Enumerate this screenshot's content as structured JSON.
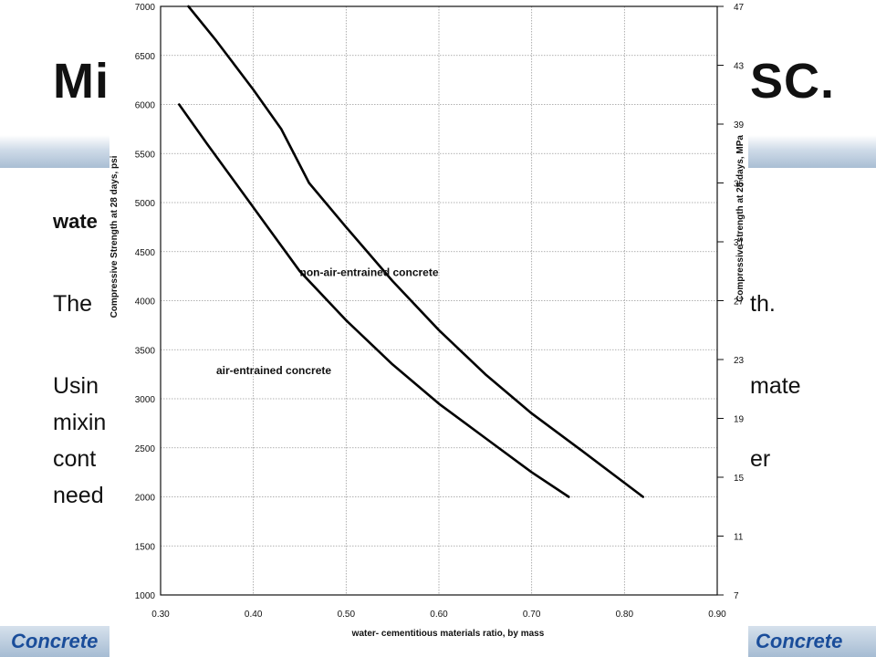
{
  "slide": {
    "title_left": "Mi",
    "title_right": "SC.",
    "line1": "wate",
    "line2_left": "The",
    "line2_right": "th.",
    "line3_left": "Usin",
    "line3_right": "mate",
    "line4_left": "mixin",
    "line5_left": "cont",
    "line5_right": "er",
    "line6_left": "need",
    "footer_left": "Concrete",
    "footer_right": "Concrete"
  },
  "chart_data": {
    "type": "line",
    "title": "",
    "xlabel": "water- cementitious materials ratio, by mass",
    "ylabel": "Compressive Strength at 28 days, psi",
    "y2label": "Compressive strength at 28 days, MPa",
    "xlim": [
      0.3,
      0.9
    ],
    "ylim": [
      1000,
      7000
    ],
    "y2lim": [
      7,
      47
    ],
    "x_ticks": [
      "0.30",
      "0.40",
      "0.50",
      "0.60",
      "0.70",
      "0.80",
      "0.90"
    ],
    "y_ticks": [
      "1000",
      "1500",
      "2000",
      "2500",
      "3000",
      "3500",
      "4000",
      "4500",
      "5000",
      "5500",
      "6000",
      "6500",
      "7000"
    ],
    "y2_ticks": [
      "7",
      "11",
      "15",
      "19",
      "23",
      "27",
      "31",
      "35",
      "39",
      "43",
      "47"
    ],
    "grid": true,
    "legend": "none",
    "series": [
      {
        "name": "non-air-entrained concrete",
        "x": [
          0.33,
          0.36,
          0.4,
          0.43,
          0.46,
          0.5,
          0.55,
          0.6,
          0.65,
          0.7,
          0.75,
          0.82
        ],
        "y": [
          7000,
          6650,
          6150,
          5750,
          5200,
          4750,
          4200,
          3700,
          3250,
          2850,
          2500,
          2000
        ]
      },
      {
        "name": "air-entrained concrete",
        "x": [
          0.32,
          0.35,
          0.4,
          0.45,
          0.5,
          0.55,
          0.6,
          0.65,
          0.7,
          0.74
        ],
        "y": [
          6000,
          5600,
          4950,
          4300,
          3800,
          3350,
          2950,
          2600,
          2250,
          2000
        ]
      }
    ]
  }
}
